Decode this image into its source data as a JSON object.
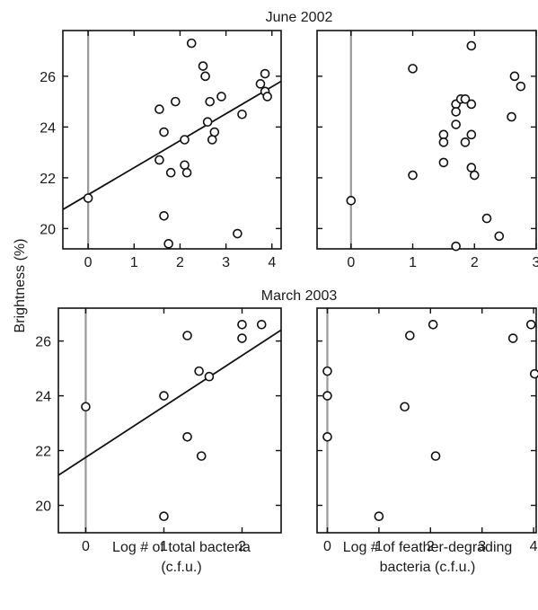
{
  "figure": {
    "ylabel": "Brightness (%)",
    "row_titles": [
      "June 2002",
      "March 2003"
    ],
    "xlabels": {
      "total": [
        "Log # of total bacteria",
        "(c.f.u.)"
      ],
      "feather": [
        "Log # of feather-degrading",
        "bacteria (c.f.u.)"
      ]
    }
  },
  "chart_data": [
    {
      "type": "scatter",
      "row": 0,
      "col": 0,
      "title": "June 2002",
      "xlim": [
        -0.55,
        4.2
      ],
      "ylim": [
        19.2,
        27.8
      ],
      "xticks": [
        0,
        1,
        2,
        3,
        4
      ],
      "yticks": [
        20,
        22,
        24,
        26
      ],
      "reference_x": 0,
      "regression": {
        "x": [
          -0.55,
          4.2
        ],
        "y": [
          20.75,
          25.8
        ]
      },
      "points": [
        {
          "x": 0.0,
          "y": 21.2
        },
        {
          "x": 1.55,
          "y": 24.7
        },
        {
          "x": 1.55,
          "y": 22.7
        },
        {
          "x": 1.65,
          "y": 23.8
        },
        {
          "x": 1.65,
          "y": 20.5
        },
        {
          "x": 1.75,
          "y": 19.4
        },
        {
          "x": 1.8,
          "y": 22.2
        },
        {
          "x": 1.9,
          "y": 25.0
        },
        {
          "x": 2.1,
          "y": 23.5
        },
        {
          "x": 2.1,
          "y": 22.5
        },
        {
          "x": 2.15,
          "y": 22.2
        },
        {
          "x": 2.25,
          "y": 27.3
        },
        {
          "x": 2.5,
          "y": 26.4
        },
        {
          "x": 2.55,
          "y": 26.0
        },
        {
          "x": 2.6,
          "y": 24.2
        },
        {
          "x": 2.65,
          "y": 25.0
        },
        {
          "x": 2.7,
          "y": 23.5
        },
        {
          "x": 2.75,
          "y": 23.8
        },
        {
          "x": 2.9,
          "y": 25.2
        },
        {
          "x": 3.25,
          "y": 19.8
        },
        {
          "x": 3.35,
          "y": 24.5
        },
        {
          "x": 3.75,
          "y": 25.7
        },
        {
          "x": 3.85,
          "y": 26.1
        },
        {
          "x": 3.85,
          "y": 25.4
        },
        {
          "x": 3.9,
          "y": 25.2
        }
      ]
    },
    {
      "type": "scatter",
      "row": 0,
      "col": 1,
      "title": "",
      "xlim": [
        -0.55,
        3.0
      ],
      "ylim": [
        19.2,
        27.8
      ],
      "xticks": [
        0,
        1,
        2,
        3
      ],
      "yticks": [
        20,
        22,
        24,
        26
      ],
      "reference_x": 0,
      "points": [
        {
          "x": 0.0,
          "y": 21.1
        },
        {
          "x": 1.0,
          "y": 26.3
        },
        {
          "x": 1.0,
          "y": 22.1
        },
        {
          "x": 1.5,
          "y": 23.7
        },
        {
          "x": 1.5,
          "y": 23.4
        },
        {
          "x": 1.5,
          "y": 22.6
        },
        {
          "x": 1.7,
          "y": 24.9
        },
        {
          "x": 1.7,
          "y": 24.6
        },
        {
          "x": 1.7,
          "y": 24.1
        },
        {
          "x": 1.7,
          "y": 19.3
        },
        {
          "x": 1.78,
          "y": 25.1
        },
        {
          "x": 1.85,
          "y": 25.1
        },
        {
          "x": 1.85,
          "y": 23.4
        },
        {
          "x": 1.95,
          "y": 27.2
        },
        {
          "x": 1.95,
          "y": 24.9
        },
        {
          "x": 1.95,
          "y": 23.7
        },
        {
          "x": 1.95,
          "y": 22.4
        },
        {
          "x": 2.0,
          "y": 22.1
        },
        {
          "x": 2.2,
          "y": 20.4
        },
        {
          "x": 2.4,
          "y": 19.7
        },
        {
          "x": 2.6,
          "y": 24.4
        },
        {
          "x": 2.65,
          "y": 26.0
        },
        {
          "x": 2.75,
          "y": 25.6
        }
      ]
    },
    {
      "type": "scatter",
      "row": 1,
      "col": 0,
      "title": "March 2003",
      "xlim": [
        -0.35,
        2.5
      ],
      "ylim": [
        19.0,
        27.2
      ],
      "xticks": [
        0,
        1,
        2
      ],
      "yticks": [
        20,
        22,
        24,
        26
      ],
      "reference_x": 0,
      "regression": {
        "x": [
          -0.35,
          2.5
        ],
        "y": [
          21.1,
          26.4
        ]
      },
      "points": [
        {
          "x": 0.0,
          "y": 23.6
        },
        {
          "x": 1.0,
          "y": 24.0
        },
        {
          "x": 1.0,
          "y": 19.6
        },
        {
          "x": 1.3,
          "y": 26.2
        },
        {
          "x": 1.3,
          "y": 22.5
        },
        {
          "x": 1.45,
          "y": 24.9
        },
        {
          "x": 1.48,
          "y": 21.8
        },
        {
          "x": 1.58,
          "y": 24.7
        },
        {
          "x": 2.0,
          "y": 26.6
        },
        {
          "x": 2.0,
          "y": 26.1
        },
        {
          "x": 2.25,
          "y": 26.6
        }
      ]
    },
    {
      "type": "scatter",
      "row": 1,
      "col": 1,
      "title": "",
      "xlim": [
        -0.2,
        4.05
      ],
      "ylim": [
        19.0,
        27.2
      ],
      "xticks": [
        0,
        1,
        2,
        3,
        4
      ],
      "yticks": [
        20,
        22,
        24,
        26
      ],
      "reference_x": 0,
      "points": [
        {
          "x": 0.0,
          "y": 24.9
        },
        {
          "x": 0.0,
          "y": 24.0
        },
        {
          "x": 0.0,
          "y": 22.5
        },
        {
          "x": 1.0,
          "y": 19.6
        },
        {
          "x": 1.5,
          "y": 23.6
        },
        {
          "x": 1.6,
          "y": 26.2
        },
        {
          "x": 2.05,
          "y": 26.6
        },
        {
          "x": 2.1,
          "y": 21.8
        },
        {
          "x": 3.6,
          "y": 26.1
        },
        {
          "x": 3.95,
          "y": 26.6
        },
        {
          "x": 4.02,
          "y": 24.8
        }
      ]
    }
  ]
}
